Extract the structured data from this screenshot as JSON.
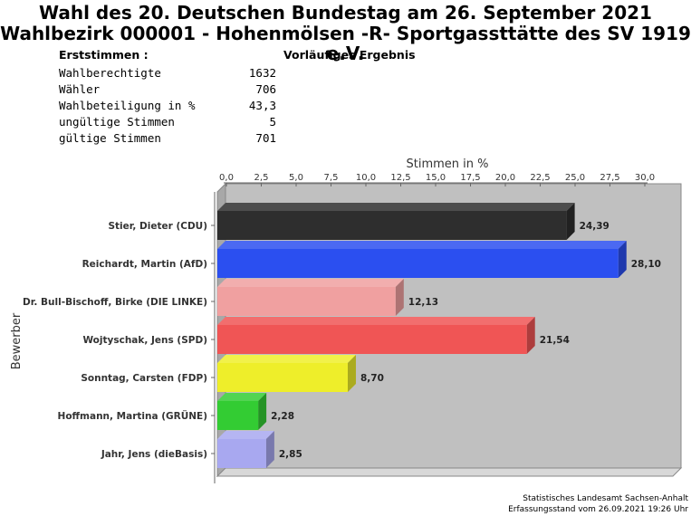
{
  "title_line1": "Wahl des 20. Deutschen Bundestag am 26. September 2021",
  "title_line2": "Wahlbezirk 000001 - Hohenmölsen -R- Sportgassttätte des SV 1919 e.V.",
  "section_label": "Erststimmen  :",
  "result_label": "Vorläufiges Ergebnis",
  "stats": [
    {
      "label": "Wahlberechtigte",
      "value": "1632"
    },
    {
      "label": "Wähler",
      "value": "706"
    },
    {
      "label": "Wahlbeteiligung in %",
      "value": "43,3"
    },
    {
      "label": "ungültige Stimmen",
      "value": "5"
    },
    {
      "label": "gültige Stimmen",
      "value": "701"
    }
  ],
  "footer_line1": "Statistisches Landesamt Sachsen-Anhalt",
  "footer_line2": "Erfassungsstand vom 26.09.2021 19:26 Uhr",
  "chart_data": {
    "type": "bar",
    "orientation": "horizontal",
    "xlabel": "Stimmen in %",
    "ylabel": "Bewerber",
    "xlim": [
      0,
      30
    ],
    "ticks": [
      "0,0",
      "2,5",
      "5,0",
      "7,5",
      "10,0",
      "12,5",
      "15,0",
      "17,5",
      "20,0",
      "22,5",
      "25,0",
      "27,5",
      "30,0"
    ],
    "tick_values": [
      0,
      2.5,
      5,
      7.5,
      10,
      12.5,
      15,
      17.5,
      20,
      22.5,
      25,
      27.5,
      30
    ],
    "categories": [
      "Stier, Dieter (CDU)",
      "Reichardt, Martin (AfD)",
      "Dr. Bull-Bischoff, Birke (DIE LINKE)",
      "Wojtyschak, Jens (SPD)",
      "Sonntag, Carsten (FDP)",
      "Hoffmann, Martina (GRÜNE)",
      "Jahr, Jens (dieBasis)"
    ],
    "values": [
      24.39,
      28.1,
      12.13,
      21.54,
      8.7,
      2.28,
      2.85
    ],
    "value_labels": [
      "24,39",
      "28,10",
      "12,13",
      "21,54",
      "8,70",
      "2,28",
      "2,85"
    ],
    "colors": [
      "#2e2e2e",
      "#2b4ff0",
      "#f0a0a0",
      "#f05555",
      "#eeee2a",
      "#33cc33",
      "#a8a8f0"
    ],
    "plot_background": "#c0c0c0",
    "grid": false
  }
}
